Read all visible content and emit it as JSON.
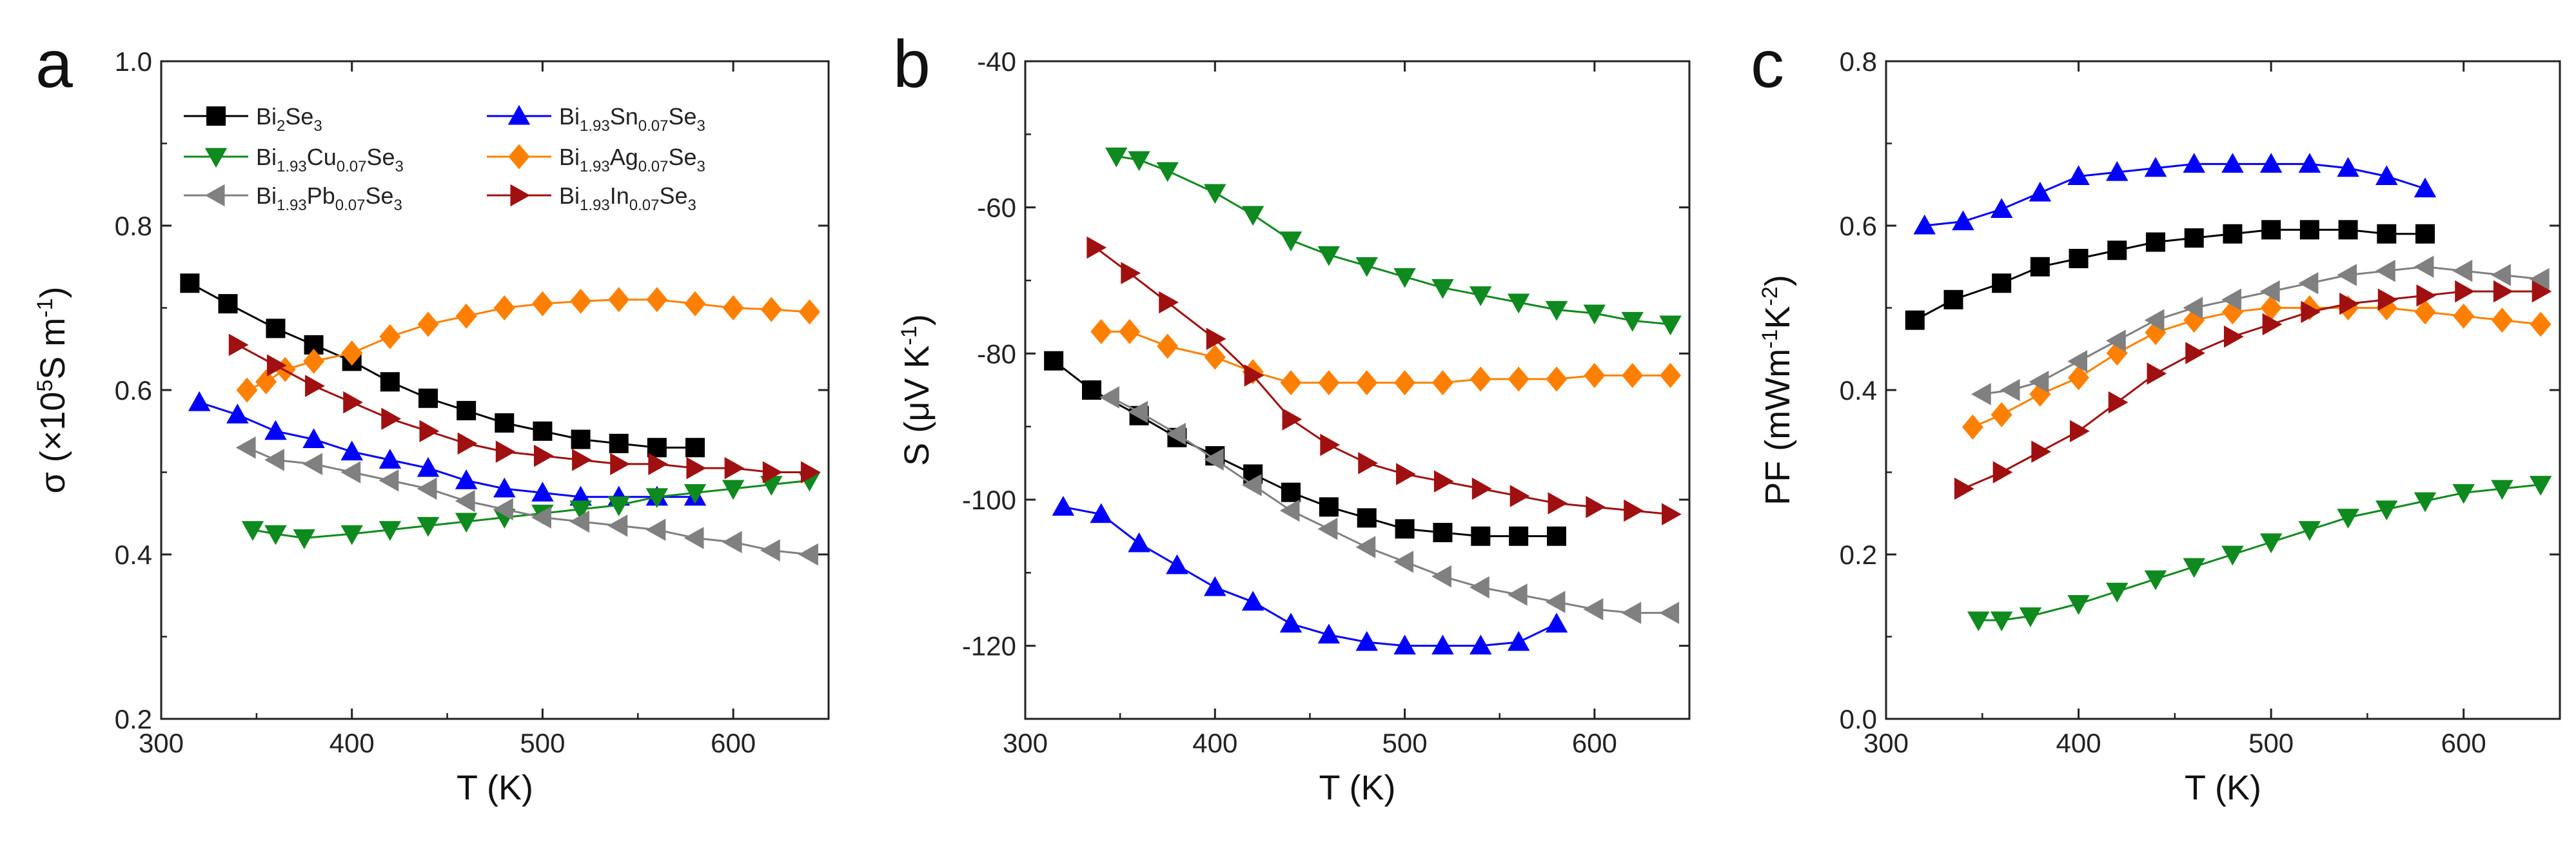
{
  "chart_data": [
    {
      "type": "line",
      "panel": "a",
      "xlabel": "T (K)",
      "ylabel_main": "σ (×10",
      "ylabel_sup": "5",
      "ylabel_mid": "S m",
      "ylabel_sup2": "-1",
      "ylabel_end": ")",
      "xlim": [
        300,
        650
      ],
      "ylim": [
        0.2,
        1.0
      ],
      "xticks": [
        300,
        400,
        500,
        600
      ],
      "xtick_labels": [
        "300",
        "400",
        "500",
        "600"
      ],
      "yticks": [
        0.2,
        0.4,
        0.6,
        0.8,
        1.0
      ],
      "ytick_labels": [
        "0.2",
        "0.4",
        "0.6",
        "0.8",
        "1.0"
      ],
      "legend": [
        {
          "key": "bise",
          "parts": [
            [
              "Bi",
              ""
            ],
            [
              "2",
              "sub"
            ],
            [
              "Se",
              ""
            ],
            [
              "3",
              "sub"
            ]
          ]
        },
        {
          "key": "sn",
          "parts": [
            [
              "Bi",
              ""
            ],
            [
              "1.93",
              "sub"
            ],
            [
              "Sn",
              ""
            ],
            [
              "0.07",
              "sub"
            ],
            [
              "Se",
              ""
            ],
            [
              "3",
              "sub"
            ]
          ]
        },
        {
          "key": "cu",
          "parts": [
            [
              "Bi",
              ""
            ],
            [
              "1.93",
              "sub"
            ],
            [
              "Cu",
              ""
            ],
            [
              "0.07",
              "sub"
            ],
            [
              "Se",
              ""
            ],
            [
              "3",
              "sub"
            ]
          ]
        },
        {
          "key": "ag",
          "parts": [
            [
              "Bi",
              ""
            ],
            [
              "1.93",
              "sub"
            ],
            [
              "Ag",
              ""
            ],
            [
              "0.07",
              "sub"
            ],
            [
              "Se",
              ""
            ],
            [
              "3",
              "sub"
            ]
          ]
        },
        {
          "key": "pb",
          "parts": [
            [
              "Bi",
              ""
            ],
            [
              "1.93",
              "sub"
            ],
            [
              "Pb",
              ""
            ],
            [
              "0.07",
              "sub"
            ],
            [
              "Se",
              ""
            ],
            [
              "3",
              "sub"
            ]
          ]
        },
        {
          "key": "in",
          "parts": [
            [
              "Bi",
              ""
            ],
            [
              "1.93",
              "sub"
            ],
            [
              "In",
              ""
            ],
            [
              "0.07",
              "sub"
            ],
            [
              "Se",
              ""
            ],
            [
              "3",
              "sub"
            ]
          ]
        }
      ],
      "series": [
        {
          "key": "bise",
          "name": "Bi2Se3",
          "color": "#000000",
          "marker": "square",
          "x": [
            315,
            335,
            360,
            380,
            400,
            420,
            440,
            460,
            480,
            500,
            520,
            540,
            560,
            580
          ],
          "y": [
            0.73,
            0.705,
            0.675,
            0.655,
            0.635,
            0.61,
            0.59,
            0.575,
            0.56,
            0.55,
            0.54,
            0.535,
            0.53,
            0.53
          ]
        },
        {
          "key": "sn",
          "name": "Bi1.93Sn0.07Se3",
          "color": "#0000ff",
          "marker": "triangle-up",
          "x": [
            320,
            340,
            360,
            380,
            400,
            420,
            440,
            460,
            480,
            500,
            520,
            540,
            560,
            580
          ],
          "y": [
            0.585,
            0.57,
            0.55,
            0.54,
            0.525,
            0.515,
            0.505,
            0.49,
            0.48,
            0.475,
            0.47,
            0.47,
            0.47,
            0.47
          ]
        },
        {
          "key": "cu",
          "name": "Bi1.93Cu0.07Se3",
          "color": "#0f8a1e",
          "marker": "triangle-down",
          "x": [
            348,
            360,
            375,
            400,
            420,
            440,
            460,
            480,
            500,
            520,
            540,
            560,
            580,
            600,
            620,
            640
          ],
          "y": [
            0.43,
            0.425,
            0.42,
            0.425,
            0.43,
            0.435,
            0.44,
            0.445,
            0.45,
            0.455,
            0.46,
            0.47,
            0.475,
            0.48,
            0.485,
            0.49
          ]
        },
        {
          "key": "ag",
          "name": "Bi1.93Ag0.07Se3",
          "color": "#ff8000",
          "marker": "diamond",
          "x": [
            345,
            355,
            365,
            380,
            400,
            420,
            440,
            460,
            480,
            500,
            520,
            540,
            560,
            580,
            600,
            620,
            640
          ],
          "y": [
            0.6,
            0.61,
            0.625,
            0.635,
            0.645,
            0.665,
            0.68,
            0.69,
            0.7,
            0.705,
            0.708,
            0.71,
            0.71,
            0.705,
            0.7,
            0.698,
            0.695
          ]
        },
        {
          "key": "pb",
          "name": "Bi1.93Pb0.07Se3",
          "color": "#808080",
          "marker": "triangle-left",
          "x": [
            345,
            360,
            380,
            400,
            420,
            440,
            460,
            480,
            500,
            520,
            540,
            560,
            580,
            600,
            620,
            640
          ],
          "y": [
            0.53,
            0.515,
            0.51,
            0.5,
            0.49,
            0.48,
            0.465,
            0.455,
            0.445,
            0.44,
            0.435,
            0.43,
            0.42,
            0.415,
            0.405,
            0.4
          ]
        },
        {
          "key": "in",
          "name": "Bi1.93In0.07Se3",
          "color": "#a01010",
          "marker": "triangle-right",
          "x": [
            340,
            360,
            380,
            400,
            420,
            440,
            460,
            480,
            500,
            520,
            540,
            560,
            580,
            600,
            620,
            640
          ],
          "y": [
            0.655,
            0.63,
            0.605,
            0.585,
            0.565,
            0.55,
            0.535,
            0.525,
            0.52,
            0.515,
            0.51,
            0.51,
            0.505,
            0.505,
            0.5,
            0.5
          ]
        }
      ]
    },
    {
      "type": "line",
      "panel": "b",
      "xlabel": "T (K)",
      "ylabel_main": "S (μV K",
      "ylabel_sup": "-1",
      "ylabel_end": ")",
      "xlim": [
        300,
        650
      ],
      "ylim": [
        -130,
        -40
      ],
      "xticks": [
        300,
        400,
        500,
        600
      ],
      "xtick_labels": [
        "300",
        "400",
        "500",
        "600"
      ],
      "yticks": [
        -120,
        -100,
        -80,
        -60,
        -40
      ],
      "ytick_labels": [
        "-120",
        "-100",
        "-80",
        "-60",
        "-40"
      ],
      "series": [
        {
          "key": "bise",
          "name": "Bi2Se3",
          "color": "#000000",
          "marker": "square",
          "x": [
            315,
            335,
            360,
            380,
            400,
            420,
            440,
            460,
            480,
            500,
            520,
            540,
            560,
            580
          ],
          "y": [
            -81,
            -85,
            -88.5,
            -91.5,
            -94,
            -96.5,
            -99,
            -101,
            -102.5,
            -104,
            -104.5,
            -105,
            -105,
            -105
          ]
        },
        {
          "key": "sn",
          "name": "Bi1.93Sn0.07Se3",
          "color": "#0000ff",
          "marker": "triangle-up",
          "x": [
            320,
            340,
            360,
            380,
            400,
            420,
            440,
            460,
            480,
            500,
            520,
            540,
            560,
            580
          ],
          "y": [
            -101,
            -102,
            -106,
            -109,
            -112,
            -114,
            -117,
            -118.5,
            -119.5,
            -120,
            -120,
            -120,
            -119.5,
            -117
          ]
        },
        {
          "key": "cu",
          "name": "Bi1.93Cu0.07Se3",
          "color": "#0f8a1e",
          "marker": "triangle-down",
          "x": [
            348,
            360,
            375,
            400,
            420,
            440,
            460,
            480,
            500,
            520,
            540,
            560,
            580,
            600,
            620,
            640
          ],
          "y": [
            -53,
            -53.5,
            -55,
            -58,
            -61,
            -64.5,
            -66.5,
            -68,
            -69.5,
            -71,
            -72,
            -73,
            -74,
            -74.5,
            -75.5,
            -76
          ]
        },
        {
          "key": "ag",
          "name": "Bi1.93Ag0.07Se3",
          "color": "#ff8000",
          "marker": "diamond",
          "x": [
            340,
            355,
            375,
            400,
            420,
            440,
            460,
            480,
            500,
            520,
            540,
            560,
            580,
            600,
            620,
            640
          ],
          "y": [
            -77,
            -77,
            -79,
            -80.5,
            -82.5,
            -84,
            -84,
            -84,
            -84,
            -84,
            -83.5,
            -83.5,
            -83.5,
            -83,
            -83,
            -83
          ]
        },
        {
          "key": "pb",
          "name": "Bi1.93Pb0.07Se3",
          "color": "#808080",
          "marker": "triangle-left",
          "x": [
            345,
            360,
            380,
            400,
            420,
            440,
            460,
            480,
            500,
            520,
            540,
            560,
            580,
            600,
            620,
            640
          ],
          "y": [
            -86,
            -88,
            -91,
            -94.5,
            -98,
            -101.5,
            -104,
            -106.5,
            -108.5,
            -110.5,
            -112,
            -113,
            -114,
            -115,
            -115.5,
            -115.5
          ]
        },
        {
          "key": "in",
          "name": "Bi1.93In0.07Se3",
          "color": "#a01010",
          "marker": "triangle-right",
          "x": [
            337,
            355,
            375,
            400,
            420,
            440,
            460,
            480,
            500,
            520,
            540,
            560,
            580,
            600,
            620,
            640
          ],
          "y": [
            -65.5,
            -69,
            -73,
            -78,
            -83,
            -89,
            -92.5,
            -95,
            -96.5,
            -97.5,
            -98.5,
            -99.5,
            -100.5,
            -101,
            -101.5,
            -102
          ]
        }
      ]
    },
    {
      "type": "line",
      "panel": "c",
      "xlabel": "T (K)",
      "ylabel_main": "PF (mWm",
      "ylabel_sup": "-1",
      "ylabel_mid": "K",
      "ylabel_sup2": "-2",
      "ylabel_end": ")",
      "xlim": [
        300,
        650
      ],
      "ylim": [
        0.0,
        0.8
      ],
      "xticks": [
        300,
        400,
        500,
        600
      ],
      "xtick_labels": [
        "300",
        "400",
        "500",
        "600"
      ],
      "yticks": [
        0.0,
        0.2,
        0.4,
        0.6,
        0.8
      ],
      "ytick_labels": [
        "0.0",
        "0.2",
        "0.4",
        "0.6",
        "0.8"
      ],
      "series": [
        {
          "key": "bise",
          "name": "Bi2Se3",
          "color": "#000000",
          "marker": "square",
          "x": [
            315,
            335,
            360,
            380,
            400,
            420,
            440,
            460,
            480,
            500,
            520,
            540,
            560,
            580
          ],
          "y": [
            0.485,
            0.51,
            0.53,
            0.55,
            0.56,
            0.57,
            0.58,
            0.585,
            0.59,
            0.595,
            0.595,
            0.595,
            0.59,
            0.59
          ]
        },
        {
          "key": "sn",
          "name": "Bi1.93Sn0.07Se3",
          "color": "#0000ff",
          "marker": "triangle-up",
          "x": [
            320,
            340,
            360,
            380,
            400,
            420,
            440,
            460,
            480,
            500,
            520,
            540,
            560,
            580
          ],
          "y": [
            0.6,
            0.605,
            0.62,
            0.64,
            0.66,
            0.665,
            0.67,
            0.675,
            0.675,
            0.675,
            0.675,
            0.67,
            0.66,
            0.645
          ]
        },
        {
          "key": "cu",
          "name": "Bi1.93Cu0.07Se3",
          "color": "#0f8a1e",
          "marker": "triangle-down",
          "x": [
            348,
            360,
            375,
            400,
            420,
            440,
            460,
            480,
            500,
            520,
            540,
            560,
            580,
            600,
            620,
            640
          ],
          "y": [
            0.12,
            0.12,
            0.125,
            0.14,
            0.155,
            0.17,
            0.185,
            0.2,
            0.215,
            0.23,
            0.245,
            0.255,
            0.265,
            0.275,
            0.28,
            0.285
          ]
        },
        {
          "key": "ag",
          "name": "Bi1.93Ag0.07Se3",
          "color": "#ff8000",
          "marker": "diamond",
          "x": [
            345,
            360,
            380,
            400,
            420,
            440,
            460,
            480,
            500,
            520,
            540,
            560,
            580,
            600,
            620,
            640
          ],
          "y": [
            0.355,
            0.37,
            0.395,
            0.415,
            0.445,
            0.47,
            0.485,
            0.495,
            0.5,
            0.5,
            0.5,
            0.5,
            0.495,
            0.49,
            0.485,
            0.48
          ]
        },
        {
          "key": "pb",
          "name": "Bi1.93Pb0.07Se3",
          "color": "#808080",
          "marker": "triangle-left",
          "x": [
            350,
            365,
            380,
            400,
            420,
            440,
            460,
            480,
            500,
            520,
            540,
            560,
            580,
            600,
            620,
            640
          ],
          "y": [
            0.395,
            0.4,
            0.41,
            0.435,
            0.46,
            0.485,
            0.5,
            0.51,
            0.52,
            0.53,
            0.54,
            0.545,
            0.55,
            0.545,
            0.54,
            0.535
          ]
        },
        {
          "key": "in",
          "name": "Bi1.93In0.07Se3",
          "color": "#a01010",
          "marker": "triangle-right",
          "x": [
            340,
            360,
            380,
            400,
            420,
            440,
            460,
            480,
            500,
            520,
            540,
            560,
            580,
            600,
            620,
            640
          ],
          "y": [
            0.28,
            0.3,
            0.325,
            0.35,
            0.385,
            0.42,
            0.445,
            0.465,
            0.48,
            0.495,
            0.505,
            0.51,
            0.515,
            0.52,
            0.52,
            0.52
          ]
        }
      ]
    }
  ]
}
